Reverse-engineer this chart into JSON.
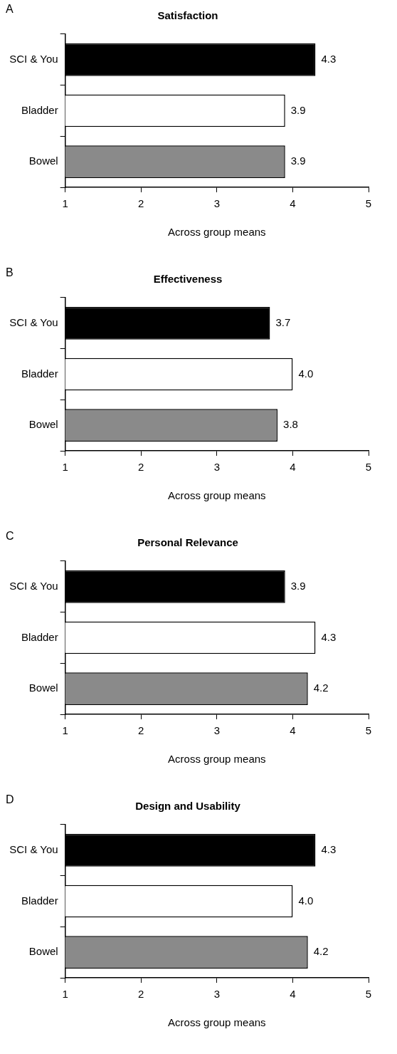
{
  "chart_data": [
    {
      "type": "bar",
      "orientation": "horizontal",
      "title": "Satisfaction",
      "annotations": [
        "A"
      ],
      "xlabel": "Across group means",
      "categories": [
        "SCI & You",
        "Bladder",
        "Bowel"
      ],
      "values": [
        4.3,
        3.9,
        3.9
      ],
      "value_labels": [
        "4.3",
        "3.9",
        "3.9"
      ],
      "colors": [
        "#000000",
        "#ffffff",
        "#8a8a8a"
      ],
      "xlim": [
        1,
        5
      ],
      "xticks": [
        1,
        2,
        3,
        4,
        5
      ],
      "legend": false
    },
    {
      "type": "bar",
      "orientation": "horizontal",
      "title": "Effectiveness",
      "annotations": [
        "B"
      ],
      "xlabel": "Across group means",
      "categories": [
        "SCI & You",
        "Bladder",
        "Bowel"
      ],
      "values": [
        3.7,
        4.0,
        3.8
      ],
      "value_labels": [
        "3.7",
        "4.0",
        "3.8"
      ],
      "colors": [
        "#000000",
        "#ffffff",
        "#8a8a8a"
      ],
      "xlim": [
        1,
        5
      ],
      "xticks": [
        1,
        2,
        3,
        4,
        5
      ],
      "legend": false
    },
    {
      "type": "bar",
      "orientation": "horizontal",
      "title": "Personal Relevance",
      "annotations": [
        "C"
      ],
      "xlabel": "Across group means",
      "categories": [
        "SCI & You",
        "Bladder",
        "Bowel"
      ],
      "values": [
        3.9,
        4.3,
        4.2
      ],
      "value_labels": [
        "3.9",
        "4.3",
        "4.2"
      ],
      "colors": [
        "#000000",
        "#ffffff",
        "#8a8a8a"
      ],
      "xlim": [
        1,
        5
      ],
      "xticks": [
        1,
        2,
        3,
        4,
        5
      ],
      "legend": false
    },
    {
      "type": "bar",
      "orientation": "horizontal",
      "title": "Design and Usability",
      "annotations": [
        "D"
      ],
      "xlabel": "Across group means",
      "categories": [
        "SCI & You",
        "Bladder",
        "Bowel"
      ],
      "values": [
        4.3,
        4.0,
        4.2
      ],
      "value_labels": [
        "4.3",
        "4.0",
        "4.2"
      ],
      "colors": [
        "#000000",
        "#ffffff",
        "#8a8a8a"
      ],
      "xlim": [
        1,
        5
      ],
      "xticks": [
        1,
        2,
        3,
        4,
        5
      ],
      "legend": false
    }
  ]
}
